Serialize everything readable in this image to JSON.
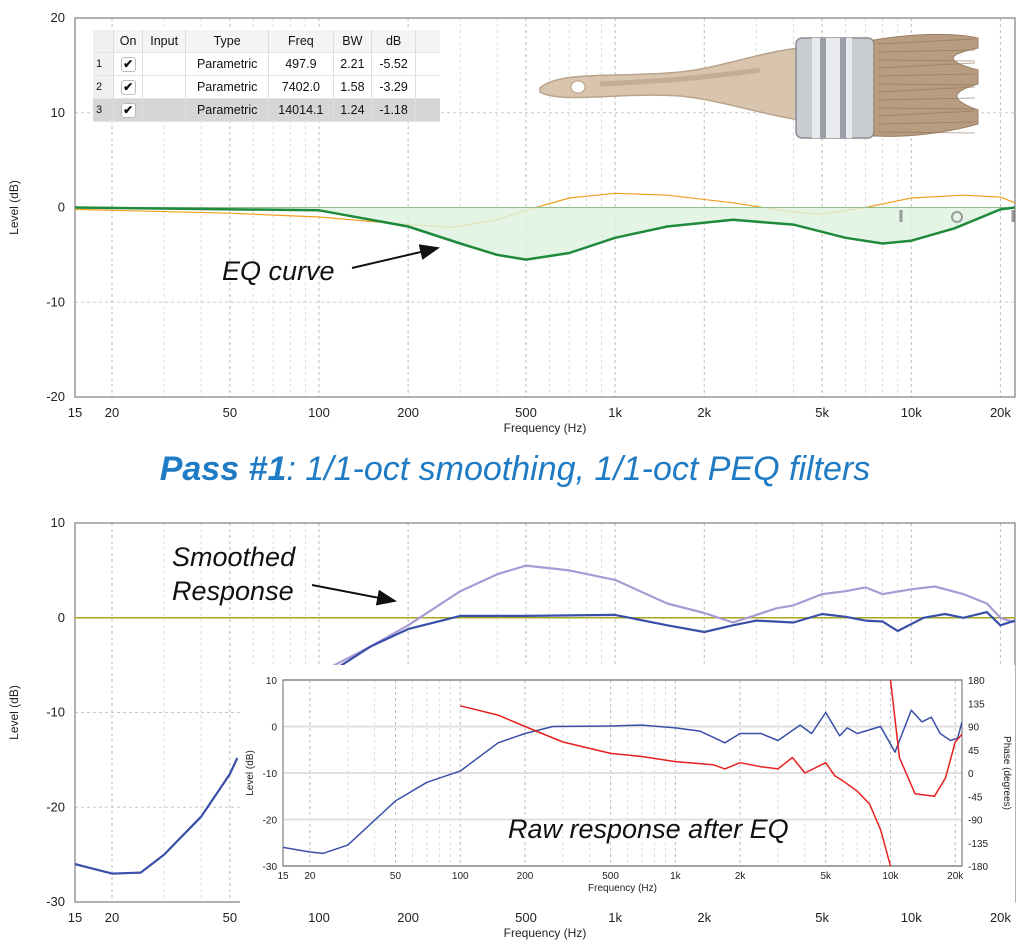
{
  "eq_table": {
    "headers": [
      "",
      "On",
      "Input",
      "Type",
      "Freq",
      "BW",
      "dB"
    ],
    "rows": [
      {
        "index": "1",
        "on": "✔",
        "input": "",
        "type": "Parametric",
        "freq": "497.9",
        "bw": "2.21",
        "db": "-5.52"
      },
      {
        "index": "2",
        "on": "✔",
        "input": "",
        "type": "Parametric",
        "freq": "7402.0",
        "bw": "1.58",
        "db": "-3.29"
      },
      {
        "index": "3",
        "on": "✔",
        "input": "",
        "type": "Parametric",
        "freq": "14014.1",
        "bw": "1.24",
        "db": "-1.18",
        "selected": true
      }
    ]
  },
  "pass_title": {
    "bold": "Pass #1",
    "rest": ":  1/1-oct smoothing, 1/1-oct PEQ filters",
    "color": "#1f7bc4"
  },
  "chart_data": [
    {
      "type": "line",
      "xlabel": "Frequency (Hz)",
      "ylabel": "Level (dB)",
      "xscale": "log",
      "xlim": [
        15,
        22400
      ],
      "ylim": [
        -20,
        20
      ],
      "grid": true,
      "x_ticks": [
        {
          "v": 15,
          "l": "15"
        },
        {
          "v": 20,
          "l": "20"
        },
        {
          "v": 50,
          "l": "50"
        },
        {
          "v": 100,
          "l": "100"
        },
        {
          "v": 200,
          "l": "200"
        },
        {
          "v": 500,
          "l": "500"
        },
        {
          "v": 1000,
          "l": "1k"
        },
        {
          "v": 2000,
          "l": "2k"
        },
        {
          "v": 5000,
          "l": "5k"
        },
        {
          "v": 10000,
          "l": "10k"
        },
        {
          "v": 20000,
          "l": "20k"
        }
      ],
      "y_ticks": [
        {
          "v": 20,
          "l": "20"
        },
        {
          "v": 10,
          "l": "10"
        },
        {
          "v": 0,
          "l": "0"
        },
        {
          "v": -10,
          "l": "-10"
        },
        {
          "v": -20,
          "l": "-20"
        }
      ],
      "annotations": [
        {
          "text": "EQ curve"
        }
      ],
      "series": [
        {
          "color": "#f0a020",
          "width": 1.2,
          "points": [
            [
              [
                15,
                -0.2
              ],
              [
                50,
                -0.6
              ],
              [
                100,
                -1
              ],
              [
                200,
                -1.8
              ],
              [
                280,
                -2.1
              ],
              [
                400,
                -1.3
              ],
              [
                500,
                -0.3
              ],
              [
                700,
                1
              ],
              [
                1000,
                1.5
              ],
              [
                1500,
                1.3
              ],
              [
                2500,
                0.5
              ],
              [
                4000,
                -0.5
              ],
              [
                5000,
                -0.7
              ],
              [
                7000,
                0
              ],
              [
                10000,
                1
              ],
              [
                15000,
                1.3
              ],
              [
                20000,
                1.1
              ],
              [
                22400,
                0.5
              ]
            ]
          ]
        },
        {
          "color": "#1f8a3c",
          "width": 2.5,
          "fill": "#dff2df",
          "points": [
            [
              [
                15,
                0
              ],
              [
                100,
                -0.3
              ],
              [
                200,
                -2
              ],
              [
                300,
                -3.8
              ],
              [
                400,
                -5
              ],
              [
                500,
                -5.5
              ],
              [
                700,
                -4.8
              ],
              [
                1000,
                -3.2
              ],
              [
                1500,
                -2
              ],
              [
                2500,
                -1.3
              ],
              [
                4000,
                -1.8
              ],
              [
                6000,
                -3.2
              ],
              [
                8000,
                -3.8
              ],
              [
                10000,
                -3.5
              ],
              [
                14000,
                -2.2
              ],
              [
                20000,
                -0.2
              ],
              [
                22400,
                0
              ]
            ]
          ]
        }
      ]
    },
    {
      "type": "line",
      "xlabel": "Frequency (Hz)",
      "ylabel": "Level (dB)",
      "xscale": "log",
      "xlim": [
        15,
        22400
      ],
      "ylim": [
        -30,
        10
      ],
      "grid": true,
      "x_ticks": [
        {
          "v": 15,
          "l": "15"
        },
        {
          "v": 20,
          "l": "20"
        },
        {
          "v": 50,
          "l": "50"
        },
        {
          "v": 100,
          "l": "100"
        },
        {
          "v": 200,
          "l": "200"
        },
        {
          "v": 500,
          "l": "500"
        },
        {
          "v": 1000,
          "l": "1k"
        },
        {
          "v": 2000,
          "l": "2k"
        },
        {
          "v": 5000,
          "l": "5k"
        },
        {
          "v": 10000,
          "l": "10k"
        },
        {
          "v": 20000,
          "l": "20k"
        }
      ],
      "y_ticks": [
        {
          "v": 10,
          "l": "10"
        },
        {
          "v": 0,
          "l": "0"
        },
        {
          "v": -10,
          "l": "-10"
        },
        {
          "v": -20,
          "l": "-20"
        },
        {
          "v": -30,
          "l": "-30"
        }
      ],
      "reference_line": {
        "value": 0,
        "color": "#a8a820"
      },
      "annotations": [
        {
          "text": "Smoothed"
        },
        {
          "text": "Response"
        }
      ],
      "series": [
        {
          "color": "#a99ad6",
          "width": 2.2,
          "points": [
            [
              [
                105,
                -5.5
              ],
              [
                150,
                -3
              ],
              [
                200,
                -0.8
              ],
              [
                300,
                2.8
              ],
              [
                400,
                4.6
              ],
              [
                500,
                5.5
              ],
              [
                700,
                5
              ],
              [
                1000,
                4
              ],
              [
                1500,
                1.5
              ],
              [
                2000,
                0.5
              ],
              [
                2500,
                -0.5
              ],
              [
                3000,
                0.3
              ],
              [
                3500,
                1
              ],
              [
                4000,
                1.3
              ],
              [
                5000,
                2.5
              ],
              [
                6000,
                2.8
              ],
              [
                7000,
                3.2
              ],
              [
                8000,
                2.5
              ],
              [
                10000,
                3
              ],
              [
                12000,
                3.3
              ],
              [
                15000,
                2.5
              ],
              [
                18000,
                1.5
              ],
              [
                20000,
                0
              ],
              [
                22400,
                -0.5
              ]
            ]
          ]
        },
        {
          "color": "#3a4fa8",
          "width": 2.2,
          "points": [
            [
              [
                15,
                -26
              ],
              [
                20,
                -27
              ],
              [
                25,
                -26.9
              ],
              [
                30,
                -25
              ],
              [
                40,
                -21
              ],
              [
                50,
                -16.5
              ],
              [
                53,
                -14.8
              ]
            ],
            [
              [
                110,
                -5.7
              ],
              [
                150,
                -3
              ],
              [
                200,
                -1.2
              ],
              [
                300,
                0.2
              ],
              [
                500,
                0.2
              ],
              [
                1000,
                0.3
              ],
              [
                1500,
                -0.8
              ],
              [
                2000,
                -1.5
              ],
              [
                2500,
                -0.8
              ],
              [
                3000,
                -0.3
              ],
              [
                4000,
                -0.5
              ],
              [
                5000,
                0.4
              ],
              [
                6000,
                0.1
              ],
              [
                7000,
                -0.3
              ],
              [
                8000,
                -0.4
              ],
              [
                9000,
                -1.4
              ],
              [
                11000,
                0
              ],
              [
                13000,
                0.4
              ],
              [
                15000,
                0
              ],
              [
                18000,
                0.6
              ],
              [
                20000,
                -0.8
              ],
              [
                22400,
                -0.3
              ]
            ]
          ]
        }
      ]
    },
    {
      "type": "line",
      "title": "Raw response after EQ",
      "xlabel": "Frequency (Hz)",
      "ylabel": "Level (dB)",
      "y2label": "Phase (degrees)",
      "xscale": "log",
      "xlim": [
        15,
        21500
      ],
      "ylim": [
        -30,
        10
      ],
      "y2lim": [
        -180,
        180
      ],
      "grid": true,
      "x_ticks": [
        {
          "v": 15,
          "l": "15"
        },
        {
          "v": 20,
          "l": "20"
        },
        {
          "v": 50,
          "l": "50"
        },
        {
          "v": 100,
          "l": "100"
        },
        {
          "v": 200,
          "l": "200"
        },
        {
          "v": 500,
          "l": "500"
        },
        {
          "v": 1000,
          "l": "1k"
        },
        {
          "v": 2000,
          "l": "2k"
        },
        {
          "v": 5000,
          "l": "5k"
        },
        {
          "v": 10000,
          "l": "10k"
        },
        {
          "v": 20000,
          "l": "20k"
        }
      ],
      "y_ticks": [
        {
          "v": 10,
          "l": "10"
        },
        {
          "v": 0,
          "l": "0"
        },
        {
          "v": -10,
          "l": "-10"
        },
        {
          "v": -20,
          "l": "-20"
        },
        {
          "v": -30,
          "l": "-30"
        }
      ],
      "y2_ticks": [
        {
          "v": 180,
          "l": "180"
        },
        {
          "v": 135,
          "l": "135"
        },
        {
          "v": 90,
          "l": "90"
        },
        {
          "v": 45,
          "l": "45"
        },
        {
          "v": 0,
          "l": "0"
        },
        {
          "v": -45,
          "l": "-45"
        },
        {
          "v": -90,
          "l": "-90"
        },
        {
          "v": -135,
          "l": "-135"
        },
        {
          "v": -180,
          "l": "-180"
        }
      ],
      "series": [
        {
          "color": "#3a4fa8",
          "width": 1.5,
          "axis": "left",
          "points": [
            [
              [
                15,
                -26
              ],
              [
                20,
                -27
              ],
              [
                23,
                -27.3
              ],
              [
                30,
                -25.5
              ],
              [
                50,
                -16
              ],
              [
                70,
                -12
              ],
              [
                100,
                -9.6
              ],
              [
                150,
                -3.5
              ],
              [
                200,
                -1.5
              ],
              [
                270,
                0
              ],
              [
                500,
                0.1
              ],
              [
                700,
                0.3
              ],
              [
                1000,
                -0.3
              ],
              [
                1300,
                -1
              ],
              [
                1700,
                -3.5
              ],
              [
                2000,
                -1.5
              ],
              [
                2500,
                -1.5
              ],
              [
                3000,
                -3
              ],
              [
                3800,
                0.3
              ],
              [
                4300,
                -1.5
              ],
              [
                5000,
                3
              ],
              [
                5800,
                -2
              ],
              [
                6300,
                -0.3
              ],
              [
                7000,
                -1.5
              ],
              [
                9000,
                0
              ],
              [
                10500,
                -5.5
              ],
              [
                12500,
                3.5
              ],
              [
                14000,
                1
              ],
              [
                15500,
                2
              ],
              [
                17000,
                -1.5
              ],
              [
                19000,
                -3
              ],
              [
                20500,
                -2.5
              ],
              [
                21500,
                1
              ]
            ]
          ]
        },
        {
          "color": "#e82020",
          "width": 1.5,
          "axis": "right",
          "points": [
            [
              [
                100,
                130
              ],
              [
                150,
                112
              ],
              [
                200,
                90
              ],
              [
                300,
                60
              ],
              [
                500,
                38
              ],
              [
                700,
                32
              ],
              [
                1000,
                22
              ],
              [
                1500,
                16
              ],
              [
                1700,
                8
              ],
              [
                2000,
                20
              ],
              [
                2500,
                12
              ],
              [
                3000,
                8
              ],
              [
                3500,
                30
              ],
              [
                4000,
                0
              ],
              [
                5000,
                20
              ],
              [
                5500,
                -5
              ],
              [
                6000,
                -15
              ],
              [
                7000,
                -35
              ],
              [
                8000,
                -60
              ],
              [
                9000,
                -110
              ],
              [
                10000,
                -180
              ]
            ],
            [
              [
                10000,
                180
              ],
              [
                11000,
                30
              ],
              [
                13000,
                -40
              ],
              [
                16000,
                -45
              ],
              [
                18000,
                -10
              ],
              [
                20000,
                60
              ],
              [
                21500,
                75
              ]
            ]
          ]
        }
      ]
    }
  ]
}
